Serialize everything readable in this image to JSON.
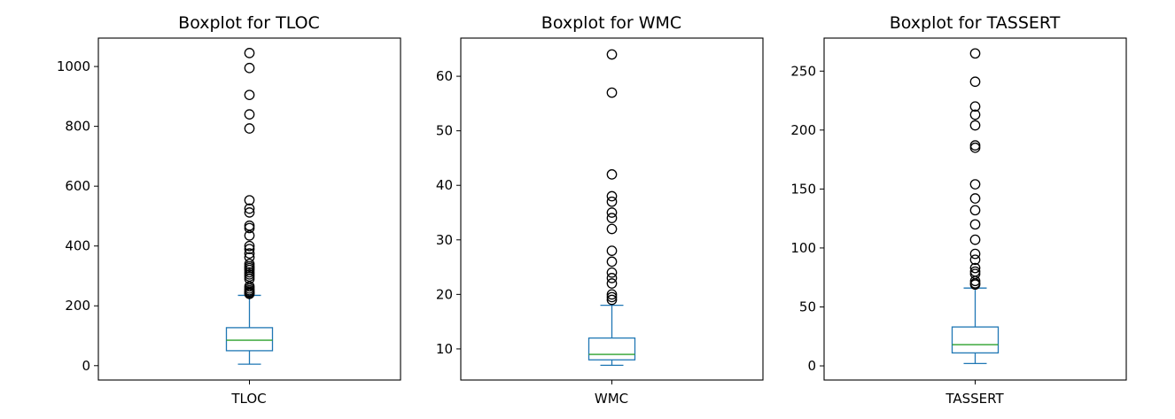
{
  "chart_data": [
    {
      "type": "box",
      "title": "Boxplot for TLOC",
      "category": "TLOC",
      "ylim": [
        -48,
        1095
      ],
      "yticks": [
        0,
        200,
        400,
        600,
        800,
        1000
      ],
      "grid": false,
      "colors": {
        "box": "#1f77b4",
        "median": "#2ca02c",
        "flier": "#000000"
      },
      "box": {
        "whisker_low": 5,
        "q1": 50,
        "median": 85,
        "q3": 127,
        "whisker_high": 235
      },
      "outliers": [
        1045,
        995,
        905,
        840,
        793,
        553,
        525,
        512,
        468,
        460,
        435,
        400,
        390,
        375,
        362,
        340,
        332,
        326,
        320,
        312,
        305,
        298,
        290,
        265,
        258,
        252,
        247,
        243,
        240
      ]
    },
    {
      "type": "box",
      "title": "Boxplot for WMC",
      "category": "WMC",
      "ylim": [
        4.3,
        67.0
      ],
      "yticks": [
        10,
        20,
        30,
        40,
        50,
        60
      ],
      "grid": false,
      "colors": {
        "box": "#1f77b4",
        "median": "#2ca02c",
        "flier": "#000000"
      },
      "box": {
        "whisker_low": 7,
        "q1": 8,
        "median": 9,
        "q3": 12,
        "whisker_high": 18
      },
      "outliers": [
        64,
        57,
        42,
        38,
        37,
        35,
        34,
        32,
        28,
        26,
        24,
        23,
        22,
        20,
        19.5,
        19
      ]
    },
    {
      "type": "box",
      "title": "Boxplot for TASSERT",
      "category": "TASSERT",
      "ylim": [
        -12,
        278
      ],
      "yticks": [
        0,
        50,
        100,
        150,
        200,
        250
      ],
      "grid": false,
      "colors": {
        "box": "#1f77b4",
        "median": "#2ca02c",
        "flier": "#000000"
      },
      "box": {
        "whisker_low": 2,
        "q1": 11,
        "median": 18,
        "q3": 33,
        "whisker_high": 66
      },
      "outliers": [
        265,
        241,
        220,
        213,
        204,
        187,
        185,
        154,
        142,
        132,
        120,
        107,
        95,
        90,
        83,
        80,
        78,
        72,
        70,
        69
      ]
    }
  ]
}
